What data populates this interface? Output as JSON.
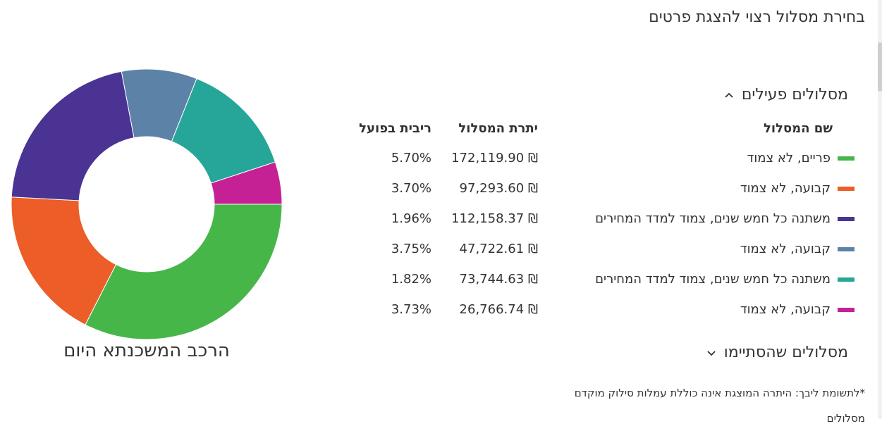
{
  "header": {
    "title": "בחירת מסלול רצוי להצגת פרטים"
  },
  "active_section": {
    "title": "מסלולים פעילים"
  },
  "table": {
    "headers": {
      "name": "שם המסלול",
      "balance": "יתרת המסלול",
      "rate": "ריבית בפועל"
    },
    "rows": [
      {
        "name": "פריים, לא צמוד",
        "balance": "172,119.90 ₪",
        "rate": "5.70%",
        "color": "#47b649"
      },
      {
        "name": "קבועה, לא צמוד",
        "balance": "97,293.60 ₪",
        "rate": "3.70%",
        "color": "#ec5d27"
      },
      {
        "name": "משתנה כל חמש שנים, צמוד למדד המחירים",
        "balance": "112,158.37 ₪",
        "rate": "1.96%",
        "color": "#4b3394"
      },
      {
        "name": "קבועה, לא צמוד",
        "balance": "47,722.61 ₪",
        "rate": "3.75%",
        "color": "#5d82a8"
      },
      {
        "name": "משתנה כל חמש שנים, צמוד למדד המחירים",
        "balance": "73,744.63 ₪",
        "rate": "1.82%",
        "color": "#26a699"
      },
      {
        "name": "קבועה, לא צמוד",
        "balance": "26,766.74 ₪",
        "rate": "3.73%",
        "color": "#c52195"
      }
    ]
  },
  "finished_section": {
    "title": "מסלולים שהסתיימו"
  },
  "note": {
    "text": "*לתשומת ליבך: היתרה המוצגת אינה כוללת עמלות סילוק מוקדם מסלולים"
  },
  "chart_data": {
    "type": "pie",
    "title": "הרכב המשכנתא היום",
    "categories": [
      "פריים, לא צמוד",
      "קבועה, לא צמוד",
      "משתנה כל חמש שנים, צמוד למדד המחירים",
      "קבועה, לא צמוד",
      "משתנה כל חמש שנים, צמוד למדד המחירים",
      "קבועה, לא צמוד"
    ],
    "values": [
      172119.9,
      97293.6,
      112158.37,
      47722.61,
      73744.63,
      26766.74
    ],
    "colors": [
      "#47b649",
      "#ec5d27",
      "#4b3394",
      "#5d82a8",
      "#26a699",
      "#c52195"
    ],
    "donut": true
  }
}
